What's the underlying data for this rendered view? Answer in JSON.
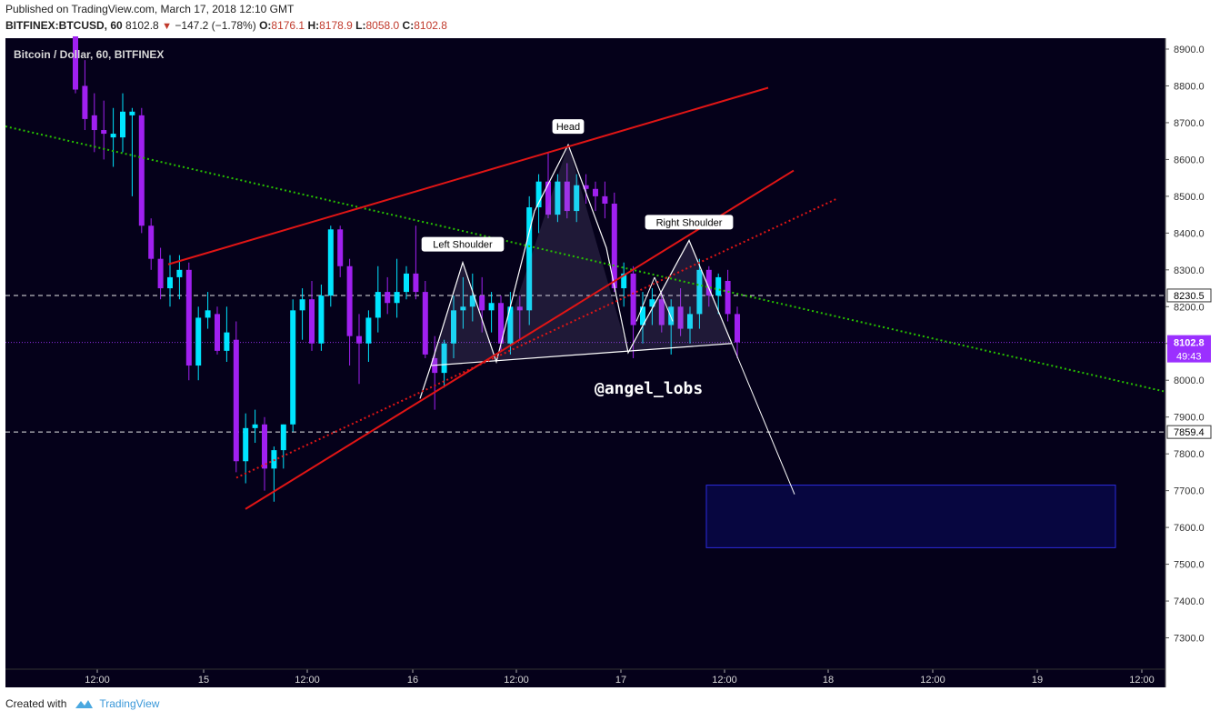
{
  "header": {
    "published": "Published on TradingView.com, March 17, 2018 12:10 GMT",
    "symbol": "BITFINEX:BTCUSD, 60",
    "last": "8102.8",
    "change": "−147.2 (−1.78%)",
    "open_label": "O:",
    "open": "8176.1",
    "high_label": "H:",
    "high": "8178.9",
    "low_label": "L:",
    "low": "8058.0",
    "close_label": "C:",
    "close": "8102.8"
  },
  "footer": {
    "created_with": "Created with",
    "brand": "TradingView",
    "logo_icon": "tradingview-cloud-icon"
  },
  "colors": {
    "background": "#05011a",
    "up": "#00e5ff",
    "down": "#a020f0",
    "trend_red": "#e01515",
    "trend_green": "#27c000",
    "neutral": "#ffffff",
    "target_zone": "#070640",
    "target_border": "#2b2bdd",
    "price_badge": "#9b30ff"
  },
  "chart_data": {
    "type": "candlestick",
    "title": "Bitcoin / Dollar, 60, BITFINEX",
    "watermark": "@angel_lobs",
    "ylim": [
      7220,
      8950
    ],
    "y_ticks": [
      "8900.0",
      "8800.0",
      "8700.0",
      "8600.0",
      "8500.0",
      "8400.0",
      "8300.0",
      "8200.0",
      "8100.0",
      "8000.0",
      "7900.0",
      "7800.0",
      "7700.0",
      "7600.0",
      "7500.0",
      "7400.0",
      "7300.0"
    ],
    "x_ticks": [
      "12:00",
      "15",
      "12:00",
      "16",
      "12:00",
      "17",
      "12:00",
      "18",
      "12:00",
      "19",
      "12:00"
    ],
    "candles": [
      {
        "o": 8940,
        "h": 8960,
        "l": 8780,
        "c": 8790
      },
      {
        "o": 8800,
        "h": 8870,
        "l": 8680,
        "c": 8710
      },
      {
        "o": 8720,
        "h": 8780,
        "l": 8620,
        "c": 8680
      },
      {
        "o": 8680,
        "h": 8760,
        "l": 8600,
        "c": 8670
      },
      {
        "o": 8660,
        "h": 8740,
        "l": 8580,
        "c": 8670
      },
      {
        "o": 8660,
        "h": 8780,
        "l": 8620,
        "c": 8730
      },
      {
        "o": 8720,
        "h": 8740,
        "l": 8500,
        "c": 8730
      },
      {
        "o": 8720,
        "h": 8740,
        "l": 8400,
        "c": 8420
      },
      {
        "o": 8420,
        "h": 8440,
        "l": 8300,
        "c": 8330
      },
      {
        "o": 8330,
        "h": 8360,
        "l": 8220,
        "c": 8250
      },
      {
        "o": 8250,
        "h": 8340,
        "l": 8200,
        "c": 8280
      },
      {
        "o": 8280,
        "h": 8340,
        "l": 8220,
        "c": 8300
      },
      {
        "o": 8300,
        "h": 8320,
        "l": 8000,
        "c": 8040
      },
      {
        "o": 8040,
        "h": 8200,
        "l": 8000,
        "c": 8170
      },
      {
        "o": 8170,
        "h": 8240,
        "l": 8140,
        "c": 8190
      },
      {
        "o": 8180,
        "h": 8200,
        "l": 8070,
        "c": 8080
      },
      {
        "o": 8080,
        "h": 8200,
        "l": 8050,
        "c": 8130
      },
      {
        "o": 8110,
        "h": 8160,
        "l": 7750,
        "c": 7780
      },
      {
        "o": 7780,
        "h": 7910,
        "l": 7720,
        "c": 7870
      },
      {
        "o": 7870,
        "h": 7920,
        "l": 7830,
        "c": 7880
      },
      {
        "o": 7880,
        "h": 7900,
        "l": 7700,
        "c": 7760
      },
      {
        "o": 7760,
        "h": 7820,
        "l": 7670,
        "c": 7810
      },
      {
        "o": 7810,
        "h": 7880,
        "l": 7760,
        "c": 7880
      },
      {
        "o": 7880,
        "h": 8220,
        "l": 7860,
        "c": 8190
      },
      {
        "o": 8190,
        "h": 8250,
        "l": 8110,
        "c": 8220
      },
      {
        "o": 8220,
        "h": 8270,
        "l": 8080,
        "c": 8100
      },
      {
        "o": 8100,
        "h": 8260,
        "l": 8080,
        "c": 8230
      },
      {
        "o": 8230,
        "h": 8420,
        "l": 8200,
        "c": 8410
      },
      {
        "o": 8410,
        "h": 8420,
        "l": 8280,
        "c": 8310
      },
      {
        "o": 8310,
        "h": 8330,
        "l": 8040,
        "c": 8120
      },
      {
        "o": 8120,
        "h": 8180,
        "l": 7990,
        "c": 8100
      },
      {
        "o": 8100,
        "h": 8190,
        "l": 8050,
        "c": 8170
      },
      {
        "o": 8170,
        "h": 8310,
        "l": 8130,
        "c": 8240
      },
      {
        "o": 8240,
        "h": 8280,
        "l": 8180,
        "c": 8210
      },
      {
        "o": 8210,
        "h": 8330,
        "l": 8170,
        "c": 8240
      },
      {
        "o": 8240,
        "h": 8310,
        "l": 8220,
        "c": 8290
      },
      {
        "o": 8290,
        "h": 8420,
        "l": 8220,
        "c": 8240
      },
      {
        "o": 8240,
        "h": 8270,
        "l": 8060,
        "c": 8070
      },
      {
        "o": 8060,
        "h": 8120,
        "l": 7920,
        "c": 8020
      },
      {
        "o": 8020,
        "h": 8110,
        "l": 7980,
        "c": 8100
      },
      {
        "o": 8100,
        "h": 8230,
        "l": 8060,
        "c": 8190
      },
      {
        "o": 8190,
        "h": 8280,
        "l": 8140,
        "c": 8200
      },
      {
        "o": 8200,
        "h": 8290,
        "l": 8160,
        "c": 8230
      },
      {
        "o": 8230,
        "h": 8280,
        "l": 8130,
        "c": 8190
      },
      {
        "o": 8190,
        "h": 8240,
        "l": 8130,
        "c": 8210
      },
      {
        "o": 8210,
        "h": 8230,
        "l": 8080,
        "c": 8100
      },
      {
        "o": 8100,
        "h": 8240,
        "l": 8070,
        "c": 8200
      },
      {
        "o": 8200,
        "h": 8230,
        "l": 8110,
        "c": 8190
      },
      {
        "o": 8190,
        "h": 8500,
        "l": 8150,
        "c": 8470
      },
      {
        "o": 8470,
        "h": 8560,
        "l": 8400,
        "c": 8540
      },
      {
        "o": 8540,
        "h": 8620,
        "l": 8440,
        "c": 8450
      },
      {
        "o": 8450,
        "h": 8560,
        "l": 8430,
        "c": 8540
      },
      {
        "o": 8540,
        "h": 8590,
        "l": 8440,
        "c": 8460
      },
      {
        "o": 8460,
        "h": 8560,
        "l": 8430,
        "c": 8530
      },
      {
        "o": 8530,
        "h": 8560,
        "l": 8480,
        "c": 8520
      },
      {
        "o": 8520,
        "h": 8540,
        "l": 8460,
        "c": 8500
      },
      {
        "o": 8500,
        "h": 8540,
        "l": 8440,
        "c": 8480
      },
      {
        "o": 8480,
        "h": 8510,
        "l": 8240,
        "c": 8250
      },
      {
        "o": 8250,
        "h": 8320,
        "l": 8200,
        "c": 8290
      },
      {
        "o": 8290,
        "h": 8310,
        "l": 8060,
        "c": 8150
      },
      {
        "o": 8150,
        "h": 8240,
        "l": 8100,
        "c": 8200
      },
      {
        "o": 8200,
        "h": 8250,
        "l": 8150,
        "c": 8220
      },
      {
        "o": 8220,
        "h": 8240,
        "l": 8130,
        "c": 8150
      },
      {
        "o": 8150,
        "h": 8220,
        "l": 8070,
        "c": 8200
      },
      {
        "o": 8200,
        "h": 8250,
        "l": 8120,
        "c": 8140
      },
      {
        "o": 8140,
        "h": 8200,
        "l": 8100,
        "c": 8180
      },
      {
        "o": 8180,
        "h": 8330,
        "l": 8140,
        "c": 8300
      },
      {
        "o": 8300,
        "h": 8310,
        "l": 8200,
        "c": 8230
      },
      {
        "o": 8230,
        "h": 8290,
        "l": 8180,
        "c": 8280
      },
      {
        "o": 8270,
        "h": 8300,
        "l": 8160,
        "c": 8180
      },
      {
        "o": 8180,
        "h": 8200,
        "l": 8060,
        "c": 8103
      }
    ],
    "patterns": [
      {
        "name": "Left Shoulder",
        "label": "Left Shoulder"
      },
      {
        "name": "Head",
        "label": "Head"
      },
      {
        "name": "Right Shoulder",
        "label": "Right Shoulder"
      }
    ],
    "horizontal_levels": [
      {
        "price": 8230.5,
        "label": "8230.5",
        "style": "dashed"
      },
      {
        "price": 7859.4,
        "label": "7859.4",
        "style": "dashed"
      },
      {
        "price": 8102.8,
        "label": "8102.8",
        "style": "dotted-purple"
      }
    ],
    "countdown": "49:43",
    "target_zone": {
      "from_price": 7715,
      "to_price": 7545
    },
    "projection": {
      "from_price": 8095,
      "to_price": 7690
    }
  }
}
